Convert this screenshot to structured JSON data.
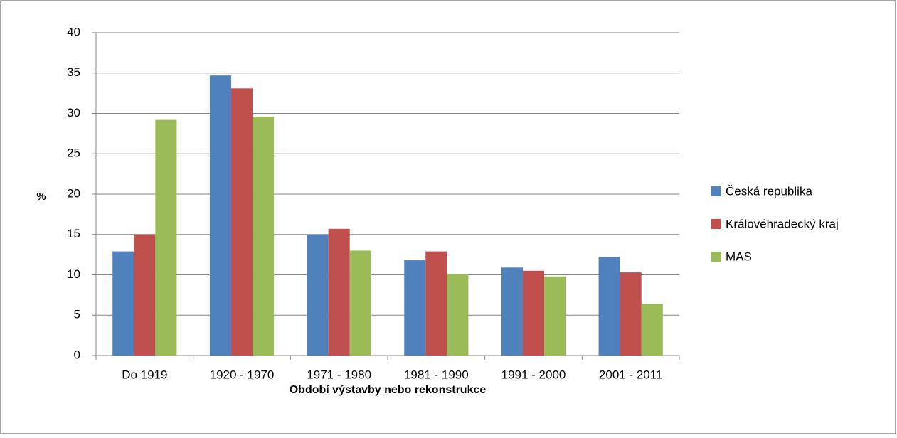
{
  "chart_data": {
    "type": "bar",
    "xlabel": "Období výstavby nebo rekonstrukce",
    "ylabel": "%",
    "categories": [
      "Do 1919",
      "1920 - 1970",
      "1971 - 1980",
      "1981 - 1990",
      "1991 - 2000",
      "2001 - 2011"
    ],
    "series": [
      {
        "name": "Česká republika",
        "color": "#4f81bd",
        "values": [
          12.9,
          34.7,
          15.0,
          11.8,
          10.9,
          12.2
        ]
      },
      {
        "name": "Královéhradecký kraj",
        "color": "#c0504d",
        "values": [
          15.0,
          33.1,
          15.7,
          12.9,
          10.5,
          10.3
        ]
      },
      {
        "name": "MAS",
        "color": "#9bbb59",
        "values": [
          29.2,
          29.6,
          13.0,
          10.1,
          9.8,
          6.4
        ]
      }
    ],
    "ylim": [
      0,
      40
    ],
    "yticks": [
      0,
      5,
      10,
      15,
      20,
      25,
      30,
      35,
      40
    ],
    "grid": true,
    "legend": "right"
  }
}
